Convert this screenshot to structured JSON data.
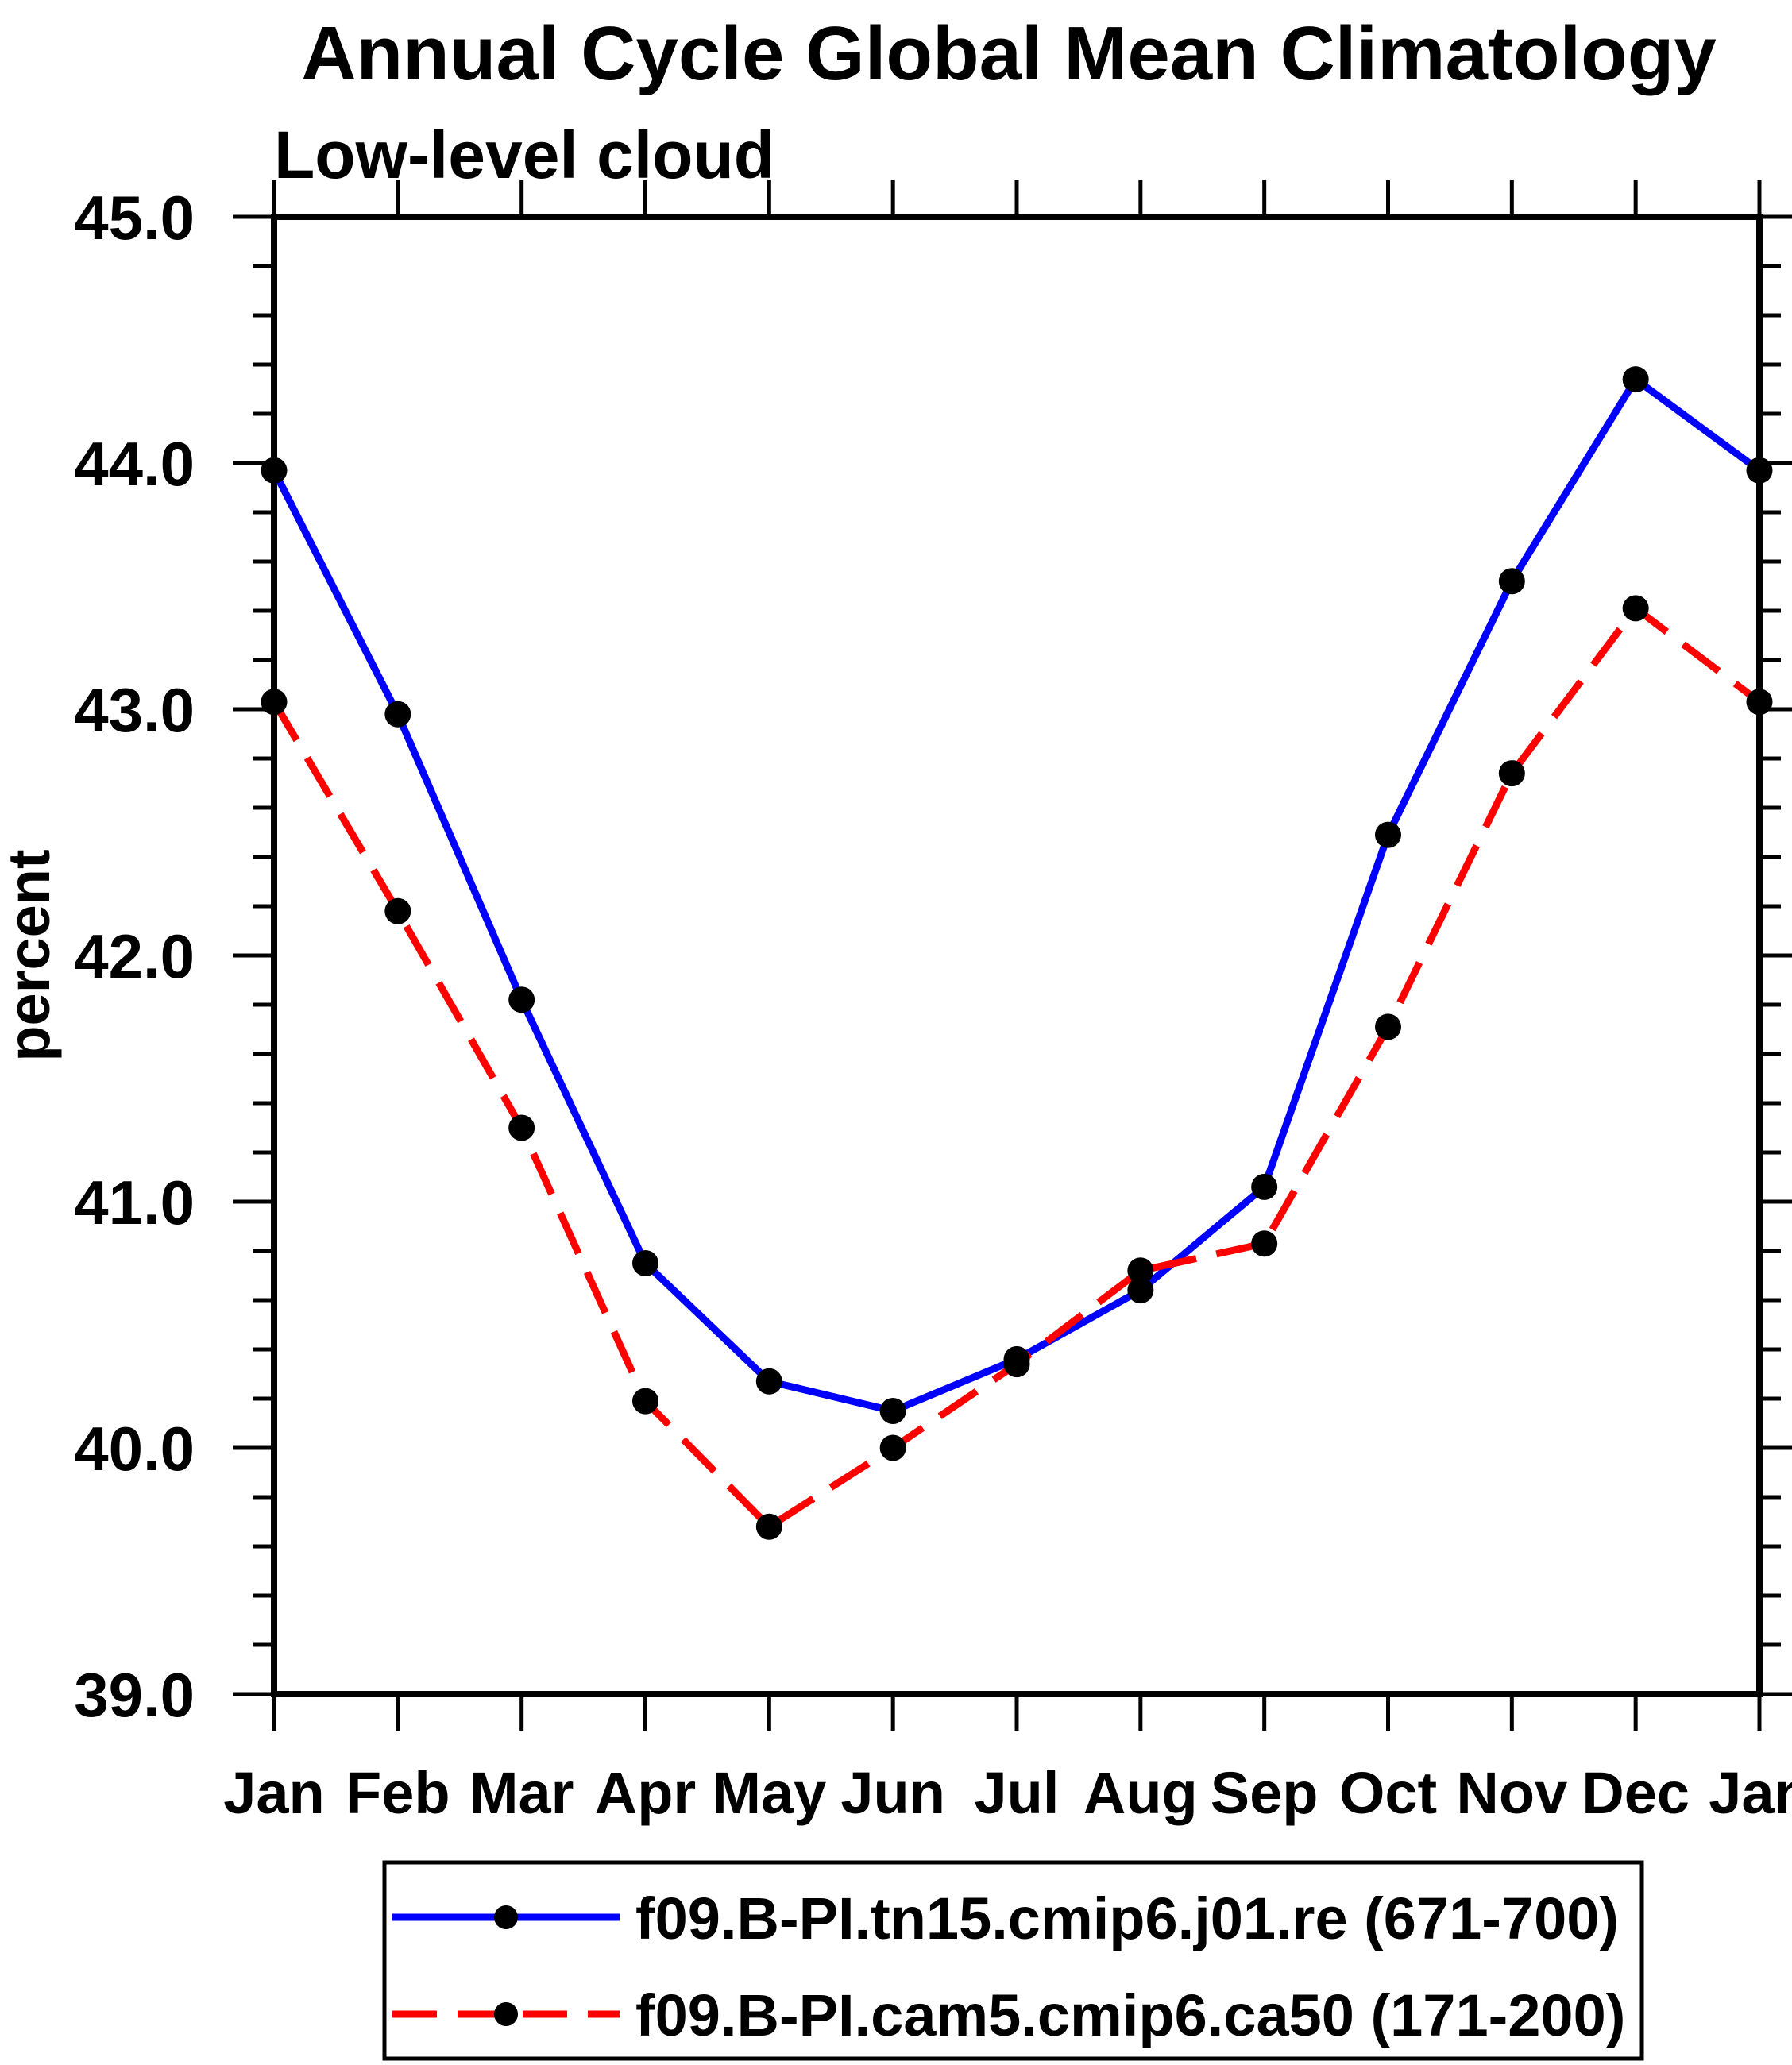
{
  "title": "Annual Cycle Global Mean Climatology",
  "subtitle": "Low-level cloud",
  "ylabel": "percent",
  "chart_data": {
    "type": "line",
    "title": "Annual Cycle Global Mean Climatology",
    "subtitle": "Low-level cloud",
    "xlabel": "",
    "ylabel": "percent",
    "categories": [
      "Jan",
      "Feb",
      "Mar",
      "Apr",
      "May",
      "Jun",
      "Jul",
      "Aug",
      "Sep",
      "Oct",
      "Nov",
      "Dec",
      "Jan"
    ],
    "ylim": [
      39.0,
      45.0
    ],
    "ytick_values": [
      39.0,
      40.0,
      41.0,
      42.0,
      43.0,
      44.0,
      45.0
    ],
    "ytick_labels": [
      "39.0",
      "40.0",
      "41.0",
      "42.0",
      "43.0",
      "44.0",
      "45.0"
    ],
    "yminor_step": 0.2,
    "grid": false,
    "legend_position": "bottom",
    "background_color": "#ffffff",
    "axis_color": "#000000",
    "marker_color": "#000000",
    "series": [
      {
        "name": "f09.B-PI.tn15.cmip6.j01.re (671-700)",
        "color": "#0000ff",
        "line_style": "solid",
        "marker": "filled-circle",
        "values": [
          43.97,
          42.98,
          41.82,
          40.75,
          40.27,
          40.15,
          40.36,
          40.64,
          41.06,
          42.49,
          43.52,
          44.34,
          43.97
        ]
      },
      {
        "name": "f09.B-PI.cam5.cmip6.ca50 (171-200)",
        "color": "#ff0000",
        "line_style": "dashed",
        "marker": "filled-circle",
        "values": [
          43.03,
          42.18,
          41.3,
          40.19,
          39.68,
          40.0,
          40.34,
          40.72,
          40.83,
          41.71,
          42.74,
          43.41,
          43.03
        ]
      }
    ]
  }
}
